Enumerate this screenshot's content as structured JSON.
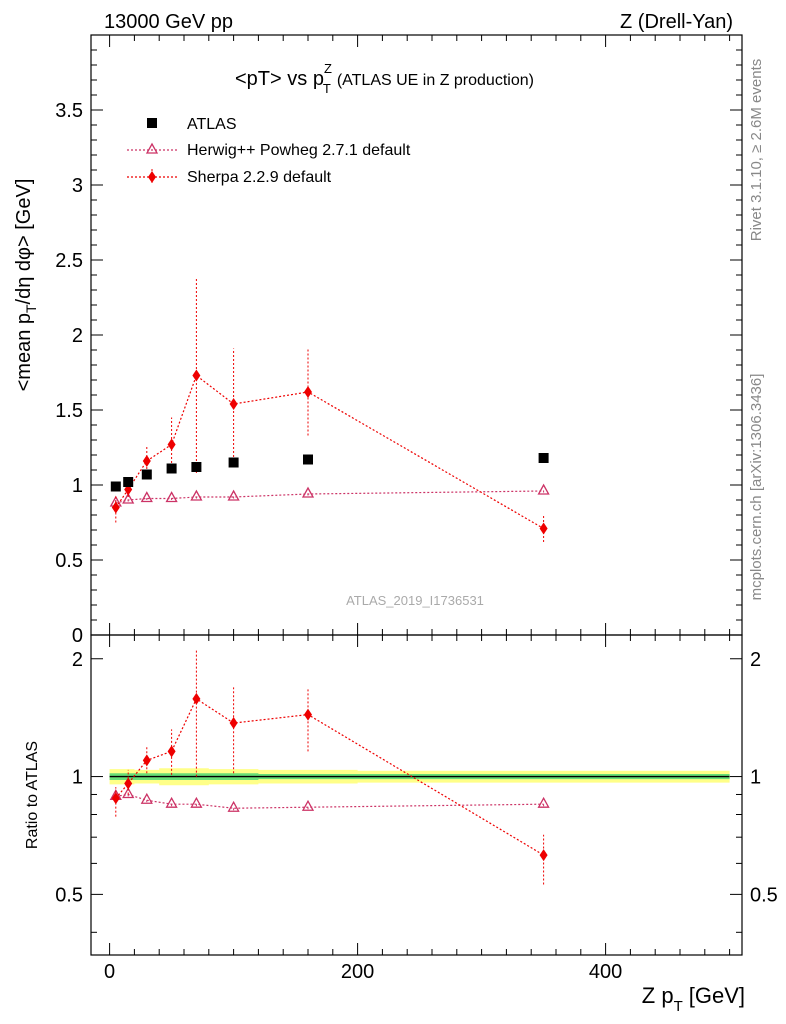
{
  "header": {
    "left": "13000 GeV pp",
    "right": "Z (Drell-Yan)"
  },
  "side_labels": {
    "rivet": "Rivet 3.1.10, ≥ 2.6M events",
    "mcplots": "mcplots.cern.ch [arXiv:1306.3436]"
  },
  "watermark": "ATLAS_2019_I1736531",
  "chart_data": [
    {
      "type": "scatter",
      "title": "<pT> vs p_T^Z (ATLAS UE in Z production)",
      "title_main": "<pT> vs p",
      "title_sup": "Z",
      "title_sub": "T",
      "title_rest": "(ATLAS UE in Z production)",
      "ylabel": "<mean p_T/dη dφ> [GeV]",
      "xlim": [
        -15,
        510
      ],
      "ylim": [
        0,
        4.0
      ],
      "yticks": [
        0,
        0.5,
        1,
        1.5,
        2,
        2.5,
        3,
        3.5
      ],
      "ytick_labels": [
        "0",
        "0.5",
        "1",
        "1.5",
        "2",
        "2.5",
        "3",
        "3.5"
      ],
      "legend_position": "top-left",
      "legend": [
        "ATLAS",
        "Herwig++ Powheg 2.7.1 default",
        "Sherpa 2.2.9 default"
      ],
      "series": [
        {
          "name": "ATLAS",
          "color": "#000000",
          "marker": "square",
          "x": [
            5,
            15,
            30,
            50,
            70,
            100,
            160,
            350
          ],
          "y": [
            0.99,
            1.02,
            1.07,
            1.11,
            1.12,
            1.15,
            1.17,
            1.18
          ]
        },
        {
          "name": "Herwig++ Powheg 2.7.1 default",
          "color": "#cc3366",
          "marker": "open-triangle",
          "x": [
            5,
            15,
            30,
            50,
            70,
            100,
            160,
            350
          ],
          "y": [
            0.88,
            0.9,
            0.91,
            0.91,
            0.92,
            0.92,
            0.94,
            0.96
          ],
          "yerr": [
            0.02,
            0.01,
            0.01,
            0.01,
            0.01,
            0.01,
            0.01,
            0.01
          ]
        },
        {
          "name": "Sherpa 2.2.9 default",
          "color": "#ee0000",
          "marker": "diamond",
          "x": [
            5,
            15,
            30,
            50,
            70,
            100,
            160,
            350
          ],
          "y": [
            0.85,
            0.97,
            1.16,
            1.27,
            1.73,
            1.54,
            1.62,
            0.71
          ],
          "ylow": [
            0.75,
            0.92,
            1.08,
            1.12,
            1.08,
            1.16,
            1.33,
            0.62
          ],
          "yhigh": [
            0.93,
            1.05,
            1.26,
            1.45,
            2.38,
            1.91,
            1.91,
            0.8
          ]
        }
      ]
    },
    {
      "type": "scatter",
      "xlabel": "Z p_T [GeV]",
      "xlabel_main": "Z p",
      "xlabel_sub": "T",
      "xlabel_unit": "[GeV]",
      "ylabel": "Ratio to ATLAS",
      "xlim": [
        -15,
        510
      ],
      "ylim": [
        0.35,
        2.3
      ],
      "yscale": "log",
      "yticks": [
        0.5,
        1,
        2
      ],
      "ytick_labels": [
        "0.5",
        "1",
        "2"
      ],
      "xticks": [
        0,
        200,
        400
      ],
      "xtick_labels": [
        "0",
        "200",
        "400"
      ],
      "reference_line": 1,
      "band": {
        "x": [
          0,
          20,
          40,
          60,
          80,
          120,
          200,
          500
        ],
        "inner": [
          0.02,
          0.02,
          0.02,
          0.02,
          0.02,
          0.015,
          0.015,
          0.015
        ],
        "outer": [
          0.045,
          0.04,
          0.05,
          0.05,
          0.045,
          0.04,
          0.035,
          0.035
        ],
        "inner_color": "#66dd77",
        "outer_color": "#ffff88"
      },
      "series": [
        {
          "name": "Herwig++ Powheg 2.7.1 default",
          "color": "#cc3366",
          "marker": "open-triangle",
          "x": [
            5,
            15,
            30,
            50,
            70,
            100,
            160,
            350
          ],
          "y": [
            0.89,
            0.9,
            0.87,
            0.85,
            0.85,
            0.83,
            0.835,
            0.85
          ],
          "yerr": [
            0.02,
            0.01,
            0.01,
            0.01,
            0.01,
            0.01,
            0.01,
            0.01
          ]
        },
        {
          "name": "Sherpa 2.2.9 default",
          "color": "#ee0000",
          "marker": "diamond",
          "x": [
            5,
            15,
            30,
            50,
            70,
            100,
            160,
            350
          ],
          "y": [
            0.88,
            0.96,
            1.1,
            1.16,
            1.58,
            1.37,
            1.44,
            0.63
          ],
          "ylow": [
            0.79,
            0.9,
            1.02,
            1.01,
            1.0,
            1.02,
            1.16,
            0.53
          ],
          "yhigh": [
            0.94,
            1.04,
            1.2,
            1.32,
            2.1,
            1.69,
            1.68,
            0.71
          ]
        }
      ]
    }
  ]
}
